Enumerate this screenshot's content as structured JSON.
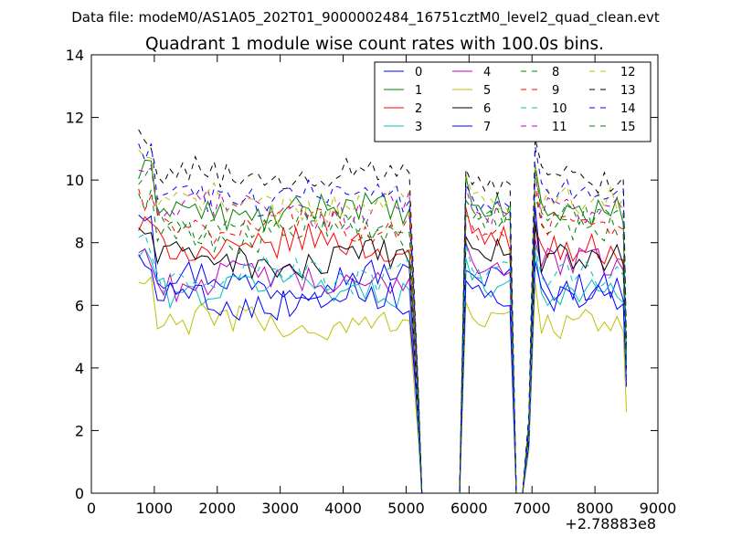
{
  "chart_data": {
    "type": "line",
    "suptitle": "Data file: modeM0/AS1A05_202T01_9000002484_16751cztM0_level2_quad_clean.evt",
    "title": "Quadrant 1 module wise count rates with 100.0s bins.",
    "xlabel": "",
    "ylabel": "",
    "x_offset_label": "+2.78883e8",
    "xlim": [
      0,
      9000
    ],
    "ylim": [
      0,
      14
    ],
    "xticks": [
      0,
      1000,
      2000,
      3000,
      4000,
      5000,
      6000,
      7000,
      8000,
      9000
    ],
    "yticks": [
      0,
      2,
      4,
      6,
      8,
      10,
      12,
      14
    ],
    "legend_location": "upper right",
    "legend_columns": 4,
    "segments": [
      {
        "start": 750,
        "end": 5050,
        "step": 100
      },
      {
        "start": 5150,
        "end": 5150,
        "step": 100
      },
      {
        "start": 5250,
        "end": 5850,
        "step": 100
      },
      {
        "start": 5950,
        "end": 6650,
        "step": 100
      },
      {
        "start": 6750,
        "end": 6850,
        "step": 100
      },
      {
        "start": 6950,
        "end": 8450,
        "step": 100
      },
      {
        "start": 8500,
        "end": 8500,
        "step": 100
      }
    ],
    "series": [
      {
        "name": "0",
        "color": "#0000ff",
        "style": "solid",
        "level": 6.8,
        "start": 9.1,
        "gap_level": 7.5,
        "post_level": 6.6,
        "final": 3.8
      },
      {
        "name": "1",
        "color": "#008000",
        "style": "solid",
        "level": 9.0,
        "start": 10.2,
        "gap_level": 9.7,
        "post_level": 9.0,
        "final": 4.2
      },
      {
        "name": "2",
        "color": "#ff0000",
        "style": "solid",
        "level": 7.9,
        "start": 8.5,
        "gap_level": 8.8,
        "post_level": 7.8,
        "final": 4.0
      },
      {
        "name": "3",
        "color": "#00bfbf",
        "style": "solid",
        "level": 6.6,
        "start": 7.6,
        "gap_level": 7.3,
        "post_level": 6.4,
        "final": 3.6
      },
      {
        "name": "4",
        "color": "#bf00bf",
        "style": "solid",
        "level": 6.8,
        "start": 7.7,
        "gap_level": 7.9,
        "post_level": 7.4,
        "final": 3.7
      },
      {
        "name": "5",
        "color": "#bfbf00",
        "style": "solid",
        "level": 5.4,
        "start": 6.7,
        "gap_level": 6.1,
        "post_level": 5.4,
        "final": 2.6
      },
      {
        "name": "6",
        "color": "#000000",
        "style": "solid",
        "level": 7.4,
        "start": 8.4,
        "gap_level": 8.3,
        "post_level": 7.5,
        "final": 4.0
      },
      {
        "name": "7",
        "color": "#0000ff",
        "style": "solid",
        "level": 6.2,
        "start": 7.5,
        "gap_level": 7.0,
        "post_level": 6.2,
        "final": 3.4
      },
      {
        "name": "8",
        "color": "#008000",
        "style": "dashed",
        "level": 8.3,
        "start": 9.4,
        "gap_level": 9.2,
        "post_level": 8.4,
        "final": 4.2
      },
      {
        "name": "9",
        "color": "#ff0000",
        "style": "dashed",
        "level": 8.6,
        "start": 9.5,
        "gap_level": 9.0,
        "post_level": 8.5,
        "final": 4.3
      },
      {
        "name": "10",
        "color": "#00bfbf",
        "style": "dashed",
        "level": 7.0,
        "start": 7.9,
        "gap_level": 7.6,
        "post_level": 7.0,
        "final": 3.8
      },
      {
        "name": "11",
        "color": "#bf00bf",
        "style": "dashed",
        "level": 9.1,
        "start": 10.0,
        "gap_level": 9.5,
        "post_level": 9.0,
        "final": 4.5
      },
      {
        "name": "12",
        "color": "#bfbf00",
        "style": "dashed",
        "level": 9.2,
        "start": 10.6,
        "gap_level": 10.0,
        "post_level": 9.4,
        "final": 4.6
      },
      {
        "name": "13",
        "color": "#000000",
        "style": "dashed",
        "level": 10.1,
        "start": 11.2,
        "gap_level": 10.3,
        "post_level": 10.0,
        "final": 4.9
      },
      {
        "name": "14",
        "color": "#0000ff",
        "style": "dashed",
        "level": 9.5,
        "start": 10.7,
        "gap_level": 9.9,
        "post_level": 9.6,
        "final": 4.6
      },
      {
        "name": "15",
        "color": "#008000",
        "style": "dashed",
        "level": 8.6,
        "start": 10.3,
        "gap_level": 9.5,
        "post_level": 8.8,
        "final": 4.3
      }
    ]
  }
}
